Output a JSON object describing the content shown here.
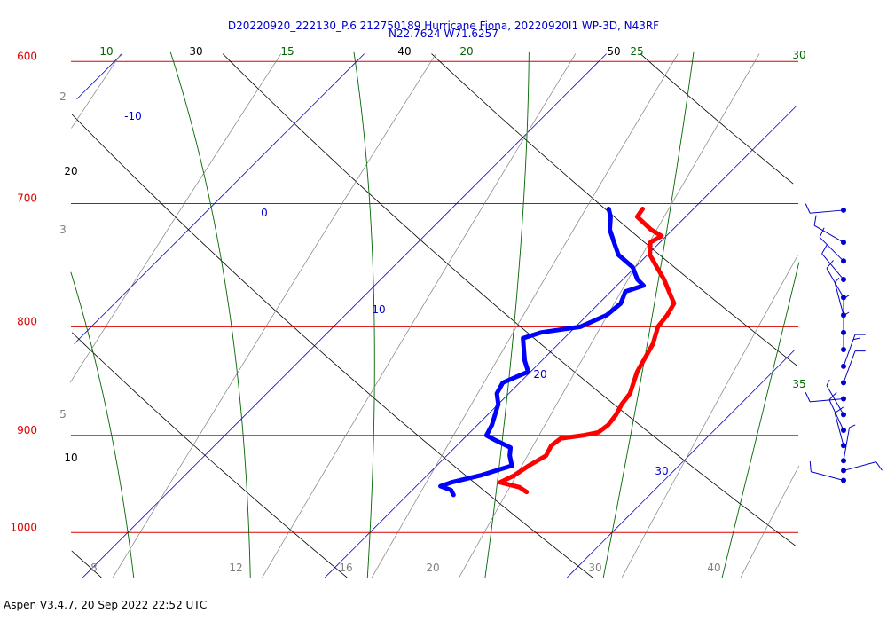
{
  "title": {
    "line1": "D20220920_222130_P.6 212750189 Hurricane Fiona, 20220920I1 WP-3D, N43RF",
    "line2": "N22.7624 W71.6257"
  },
  "footer": "Aspen V3.4.7, 20 Sep 2022  22:52 UTC",
  "colors": {
    "isobar": "#dd0000",
    "isotherm": "#0000cc",
    "temperature_trace": "#ff0000",
    "dewpoint_trace": "#0000ff",
    "moist_adiabat": "#006600",
    "dry_adiabat": "#000000",
    "mixing_ratio": "#808080",
    "wind_barb": "#0000cc"
  },
  "chart_data": {
    "type": "skew-t",
    "pressure_levels": [
      {
        "p": 600,
        "label": "600"
      },
      {
        "p": 700,
        "label": "700"
      },
      {
        "p": 800,
        "label": "800"
      },
      {
        "p": 900,
        "label": "900"
      },
      {
        "p": 1000,
        "label": "1000"
      }
    ],
    "isotherms": [
      {
        "t": -10,
        "label": "-10"
      },
      {
        "t": 0,
        "label": "0"
      },
      {
        "t": 10,
        "label": "10"
      },
      {
        "t": 20,
        "label": "20"
      },
      {
        "t": 30,
        "label": "30"
      }
    ],
    "dry_adiabat_labels": [
      "10",
      "20",
      "30",
      "40",
      "50"
    ],
    "moist_adiabat_labels": [
      "10",
      "15",
      "20",
      "25",
      "30",
      "35"
    ],
    "mixing_ratio_labels_left": [
      "2",
      "3",
      "5"
    ],
    "mixing_ratio_labels_bottom": [
      "8",
      "12",
      "16",
      "20",
      "30",
      "40"
    ],
    "temperature": [
      {
        "p": 957,
        "t": 24.8
      },
      {
        "p": 952,
        "t": 24.3
      },
      {
        "p": 947,
        "t": 23.3
      },
      {
        "p": 940,
        "t": 23.6
      },
      {
        "p": 930,
        "t": 23.8
      },
      {
        "p": 920,
        "t": 24.1
      },
      {
        "p": 910,
        "t": 23.9
      },
      {
        "p": 903,
        "t": 24.0
      },
      {
        "p": 900,
        "t": 24.8
      },
      {
        "p": 897,
        "t": 25.3
      },
      {
        "p": 890,
        "t": 25.4
      },
      {
        "p": 880,
        "t": 25.3
      },
      {
        "p": 870,
        "t": 25.1
      },
      {
        "p": 860,
        "t": 25.0
      },
      {
        "p": 850,
        "t": 24.7
      },
      {
        "p": 840,
        "t": 24.4
      },
      {
        "p": 830,
        "t": 24.2
      },
      {
        "p": 815,
        "t": 23.9
      },
      {
        "p": 800,
        "t": 23.4
      },
      {
        "p": 790,
        "t": 23.3
      },
      {
        "p": 780,
        "t": 23.1
      },
      {
        "p": 770,
        "t": 22.4
      },
      {
        "p": 760,
        "t": 21.7
      },
      {
        "p": 750,
        "t": 20.9
      },
      {
        "p": 740,
        "t": 20.1
      },
      {
        "p": 730,
        "t": 19.6
      },
      {
        "p": 725,
        "t": 19.8
      },
      {
        "p": 720,
        "t": 19.1
      },
      {
        "p": 710,
        "t": 18.0
      },
      {
        "p": 704,
        "t": 17.9
      }
    ],
    "dewpoint": [
      {
        "p": 960,
        "t": 21.9
      },
      {
        "p": 955,
        "t": 21.6
      },
      {
        "p": 951,
        "t": 21.0
      },
      {
        "p": 947,
        "t": 21.3
      },
      {
        "p": 940,
        "t": 22.2
      },
      {
        "p": 930,
        "t": 23.1
      },
      {
        "p": 920,
        "t": 22.6
      },
      {
        "p": 912,
        "t": 22.3
      },
      {
        "p": 905,
        "t": 21.4
      },
      {
        "p": 900,
        "t": 20.8
      },
      {
        "p": 890,
        "t": 20.6
      },
      {
        "p": 880,
        "t": 20.3
      },
      {
        "p": 870,
        "t": 20.0
      },
      {
        "p": 860,
        "t": 19.5
      },
      {
        "p": 850,
        "t": 19.3
      },
      {
        "p": 840,
        "t": 19.9
      },
      {
        "p": 830,
        "t": 19.3
      },
      {
        "p": 820,
        "t": 18.8
      },
      {
        "p": 810,
        "t": 18.3
      },
      {
        "p": 805,
        "t": 18.8
      },
      {
        "p": 800,
        "t": 20.2
      },
      {
        "p": 790,
        "t": 20.8
      },
      {
        "p": 780,
        "t": 20.9
      },
      {
        "p": 770,
        "t": 20.6
      },
      {
        "p": 765,
        "t": 21.1
      },
      {
        "p": 760,
        "t": 20.6
      },
      {
        "p": 750,
        "t": 19.9
      },
      {
        "p": 740,
        "t": 18.8
      },
      {
        "p": 730,
        "t": 18.1
      },
      {
        "p": 720,
        "t": 17.4
      },
      {
        "p": 710,
        "t": 16.9
      },
      {
        "p": 704,
        "t": 16.5
      }
    ],
    "wind_barbs": [
      {
        "p": 705,
        "dir": 265,
        "speed_kt": 10
      },
      {
        "p": 730,
        "dir": 300,
        "speed_kt": 10
      },
      {
        "p": 745,
        "dir": 315,
        "speed_kt": 10
      },
      {
        "p": 760,
        "dir": 320,
        "speed_kt": 10
      },
      {
        "p": 775,
        "dir": 330,
        "speed_kt": 10
      },
      {
        "p": 790,
        "dir": 345,
        "speed_kt": 5
      },
      {
        "p": 805,
        "dir": 360,
        "speed_kt": 5
      },
      {
        "p": 820,
        "dir": 360,
        "speed_kt": 5
      },
      {
        "p": 835,
        "dir": 20,
        "speed_kt": 15
      },
      {
        "p": 850,
        "dir": 20,
        "speed_kt": 10
      },
      {
        "p": 865,
        "dir": 265,
        "speed_kt": 10
      },
      {
        "p": 880,
        "dir": 330,
        "speed_kt": 5
      },
      {
        "p": 895,
        "dir": 335,
        "speed_kt": 10
      },
      {
        "p": 910,
        "dir": 345,
        "speed_kt": 10
      },
      {
        "p": 925,
        "dir": 10,
        "speed_kt": 5
      },
      {
        "p": 935,
        "dir": 75,
        "speed_kt": 10
      },
      {
        "p": 945,
        "dir": 285,
        "speed_kt": 10
      }
    ]
  }
}
